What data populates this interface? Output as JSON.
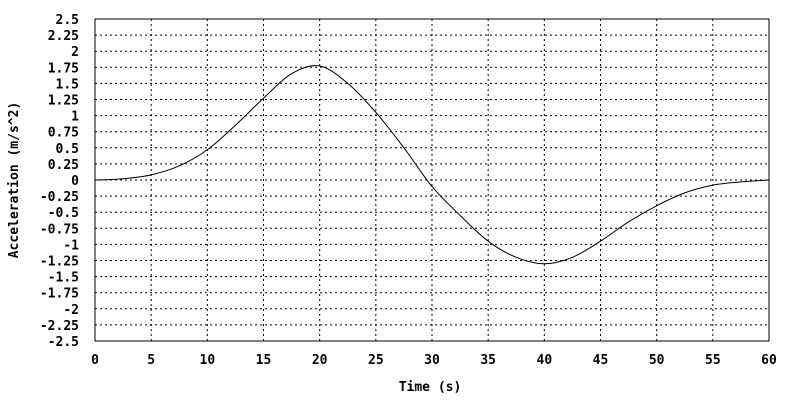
{
  "chart_data": {
    "type": "line",
    "title": "",
    "xlabel": "Time (s)",
    "ylabel": "Acceleration (m/s^2)",
    "xlim": [
      0,
      60
    ],
    "ylim": [
      -2.5,
      2.5
    ],
    "x_ticks": [
      "0",
      "5",
      "10",
      "15",
      "20",
      "25",
      "30",
      "35",
      "40",
      "45",
      "50",
      "55",
      "60"
    ],
    "y_ticks": [
      "2.5",
      "2.25",
      "2",
      "1.75",
      "1.5",
      "1.25",
      "1",
      "0.75",
      "0.5",
      "0.25",
      "0",
      "-0.25",
      "-0.5",
      "-0.75",
      "-1",
      "-1.25",
      "-1.5",
      "-1.75",
      "-2",
      "-2.25",
      "-2.5"
    ],
    "grid": true,
    "legend": "none",
    "series": [
      {
        "color": "#000000",
        "x": [
          0,
          2.5,
          5,
          7.5,
          10,
          12.5,
          15,
          17.5,
          20,
          22.5,
          25,
          27.5,
          30,
          32.5,
          35,
          37.5,
          40,
          42.5,
          45,
          47.5,
          50,
          52.5,
          55,
          57.5,
          60
        ],
        "y": [
          0.0,
          0.02,
          0.08,
          0.22,
          0.47,
          0.85,
          1.27,
          1.65,
          1.77,
          1.5,
          1.05,
          0.5,
          -0.1,
          -0.55,
          -0.95,
          -1.2,
          -1.3,
          -1.2,
          -0.95,
          -0.65,
          -0.4,
          -0.2,
          -0.08,
          -0.03,
          0.0
        ]
      }
    ]
  }
}
